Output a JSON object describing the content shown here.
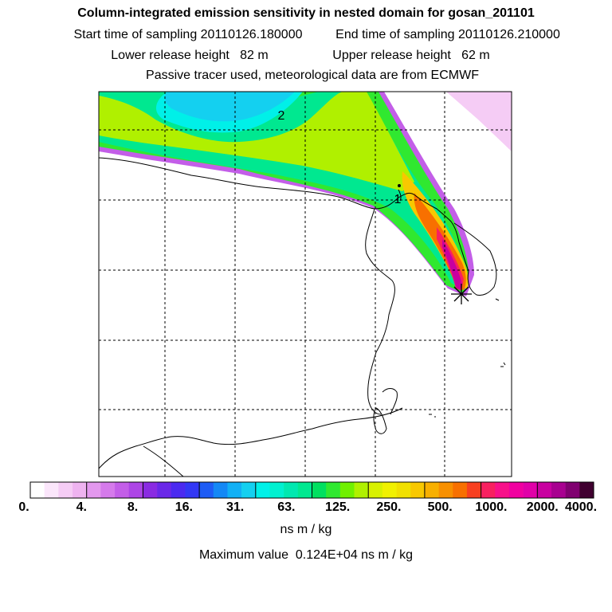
{
  "header": {
    "title": "Column-integrated emission sensitivity in nested domain for gosan_201101",
    "start_label": "Start time of sampling 20110126.180000",
    "end_label": "End time of sampling 20110126.210000",
    "lower_label": "Lower release height   82 m",
    "upper_label": "Upper release height   62 m",
    "tracer_note": "Passive tracer used, meteorological data are from ECMWF"
  },
  "map": {
    "labels": [
      "2",
      "1"
    ],
    "release_marker": "release-site-star"
  },
  "colorbar": {
    "ticks": [
      "0.",
      "4.",
      "8.",
      "16.",
      "31.",
      "63.",
      "125.",
      "250.",
      "500.",
      "1000.",
      "2000.",
      "4000."
    ],
    "colors": [
      "#ffffff",
      "#fbe6fb",
      "#f5ccf5",
      "#eeb3f0",
      "#e398ee",
      "#d57aeb",
      "#c35ee8",
      "#ad45e6",
      "#8a2be2",
      "#6a28e8",
      "#4b2af0",
      "#3338f5",
      "#1e5cf5",
      "#1488f5",
      "#12b0f5",
      "#14d0f0",
      "#00f0e8",
      "#00f0d0",
      "#00e8b0",
      "#00e890",
      "#00e060",
      "#30e830",
      "#70f000",
      "#b0f000",
      "#d8f000",
      "#f0f000",
      "#f0e000",
      "#f8c800",
      "#f8b000",
      "#f89000",
      "#f87000",
      "#f84020",
      "#f82060",
      "#f8108a",
      "#f000a0",
      "#e000a8",
      "#c800a0",
      "#a80090",
      "#800070",
      "#400030"
    ],
    "unit": "ns m / kg"
  },
  "max_value_text": "Maximum value  0.124E+04 ns m / kg"
}
